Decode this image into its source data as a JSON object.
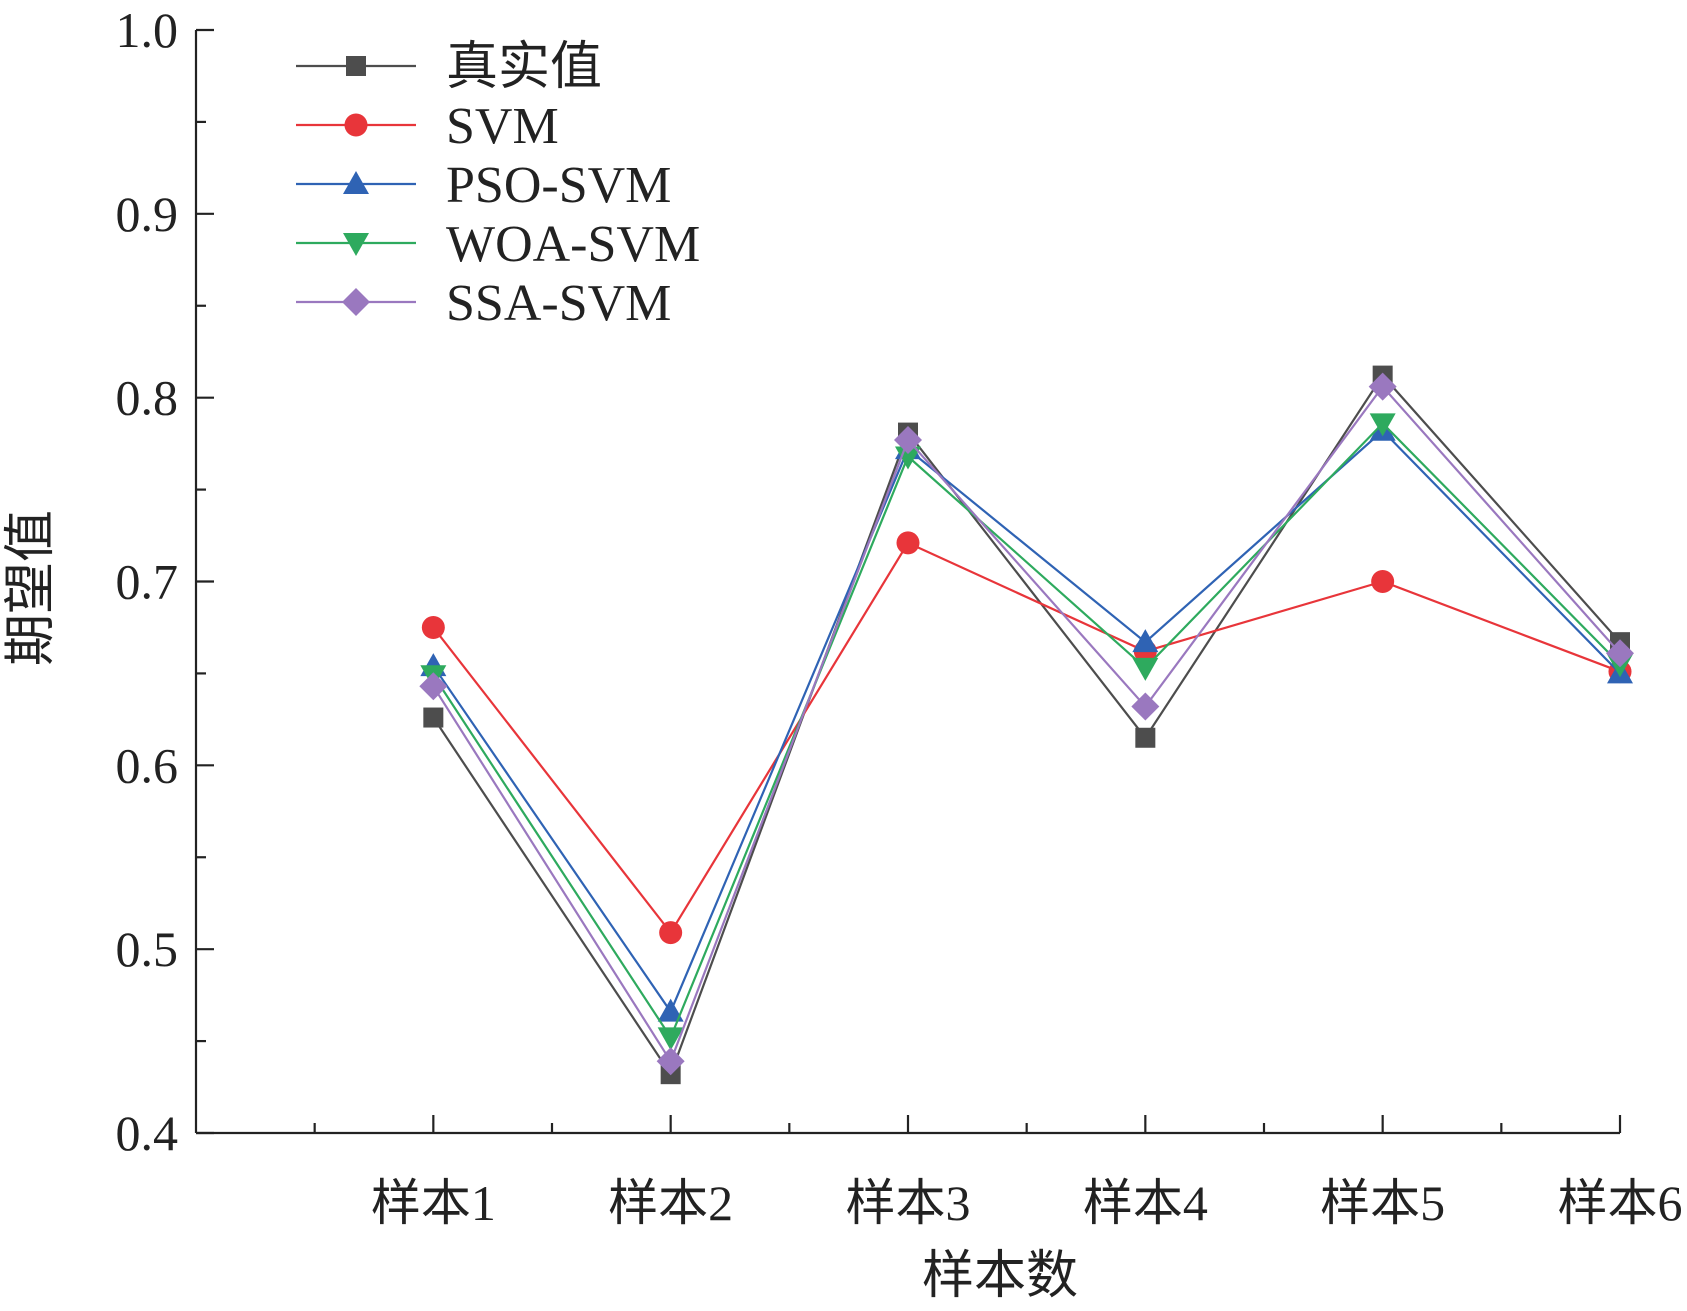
{
  "chart_data": {
    "type": "line",
    "xlabel": "样本数",
    "ylabel": "期望值",
    "categories": [
      "样本1",
      "样本2",
      "样本3",
      "样本4",
      "样本5",
      "样本6"
    ],
    "ylim": [
      0.4,
      1.0
    ],
    "yticks": [
      "0.4",
      "0.5",
      "0.6",
      "0.7",
      "0.8",
      "0.9",
      "1.0"
    ],
    "grid": false,
    "legend_position": "top-left",
    "series": [
      {
        "name": "真实值",
        "marker": "square",
        "color": "#4d4d4d",
        "values": [
          0.626,
          0.432,
          0.781,
          0.615,
          0.812,
          0.667
        ]
      },
      {
        "name": "SVM",
        "marker": "circle",
        "color": "#e8353a",
        "values": [
          0.675,
          0.509,
          0.721,
          0.662,
          0.7,
          0.651
        ]
      },
      {
        "name": "PSO-SVM",
        "marker": "triangle-up",
        "color": "#2f63b4",
        "values": [
          0.654,
          0.466,
          0.772,
          0.667,
          0.782,
          0.65
        ]
      },
      {
        "name": "WOA-SVM",
        "marker": "triangle-down",
        "color": "#2eaa5e",
        "values": [
          0.649,
          0.452,
          0.768,
          0.653,
          0.786,
          0.655
        ]
      },
      {
        "name": "SSA-SVM",
        "marker": "diamond",
        "color": "#9a78bf",
        "values": [
          0.643,
          0.439,
          0.777,
          0.632,
          0.806,
          0.661
        ]
      }
    ]
  }
}
